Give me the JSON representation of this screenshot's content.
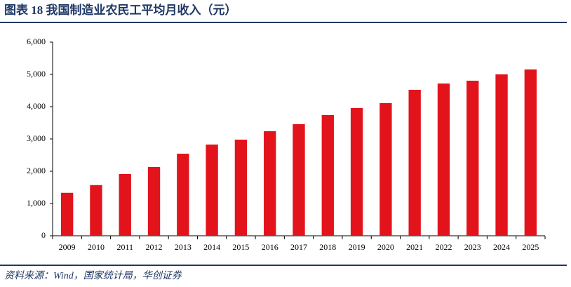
{
  "chart_data": {
    "type": "bar",
    "title": "图表 18 我国制造业农民工平均月收入（元）",
    "source": "资料来源：Wind，国家统计局，华创证券",
    "categories": [
      "2009",
      "2010",
      "2011",
      "2012",
      "2013",
      "2014",
      "2015",
      "2016",
      "2017",
      "2018",
      "2019",
      "2020",
      "2021",
      "2022",
      "2023",
      "2024",
      "2025"
    ],
    "values": [
      1331,
      1570,
      1913,
      2130,
      2543,
      2826,
      2978,
      3239,
      3457,
      3739,
      3957,
      4109,
      4522,
      4717,
      4804,
      5000,
      5152
    ],
    "color": "#e3131c",
    "ylim": [
      0,
      6000
    ],
    "yticks": [
      0,
      {
        "value": 1000,
        "label": "1,000"
      },
      {
        "value": 2000,
        "label": "2,000"
      },
      {
        "value": 3000,
        "label": "3,000"
      },
      {
        "value": 4000,
        "label": "4,000"
      },
      {
        "value": 5000,
        "label": "5,000"
      },
      {
        "value": 6000,
        "label": "6,000"
      }
    ],
    "grid": false
  }
}
